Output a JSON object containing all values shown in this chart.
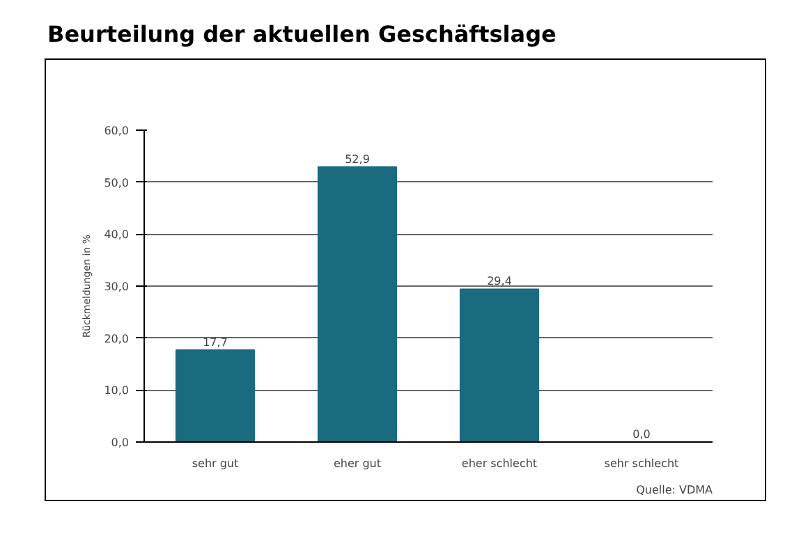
{
  "chart_data": {
    "type": "bar",
    "title": "Beurteilung der aktuellen Geschäftslage",
    "ylabel": "Rückmeldungen in %",
    "categories": [
      "sehr gut",
      "eher gut",
      "eher schlecht",
      "sehr schlecht"
    ],
    "values": [
      17.7,
      52.9,
      29.4,
      0.0
    ],
    "value_labels": [
      "17,7",
      "52,9",
      "29,4",
      "0,0"
    ],
    "color": "#1a6a80",
    "ylim": [
      0,
      60
    ],
    "yticks": [
      {
        "value": 0,
        "label": "0,0"
      },
      {
        "value": 10,
        "label": "10,0"
      },
      {
        "value": 20,
        "label": "20,0"
      },
      {
        "value": 30,
        "label": "30,0"
      },
      {
        "value": 40,
        "label": "40,0"
      },
      {
        "value": 50,
        "label": "50,0"
      },
      {
        "value": 60,
        "label": "60,0"
      }
    ],
    "grid": "y",
    "annotations": [
      "Quelle: VDMA"
    ]
  }
}
